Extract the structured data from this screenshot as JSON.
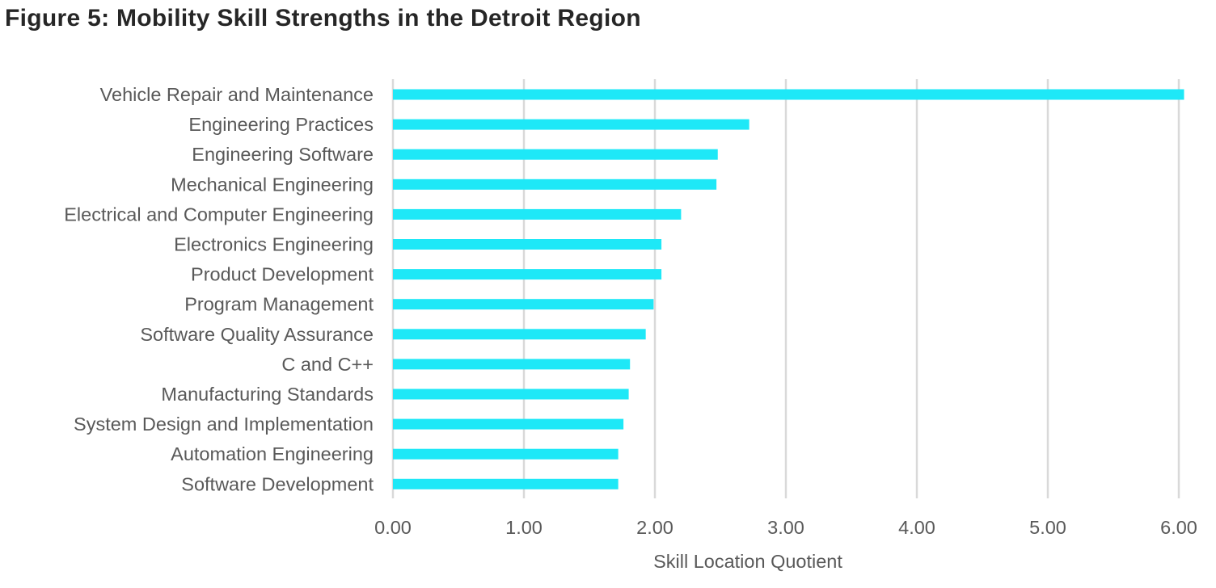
{
  "chart_data": {
    "type": "bar",
    "orientation": "horizontal",
    "title": "Figure 5: Mobility Skill Strengths in the Detroit Region",
    "xlabel": "Skill Location Quotient",
    "ylabel": "",
    "xlim": [
      0,
      6
    ],
    "x_ticks": [
      "0.00",
      "1.00",
      "2.00",
      "3.00",
      "4.00",
      "5.00",
      "6.00"
    ],
    "grid": "vertical",
    "bar_color": "#1ee8f7",
    "categories": [
      "Vehicle Repair and Maintenance",
      "Engineering Practices",
      "Engineering Software",
      "Mechanical Engineering",
      "Electrical and Computer Engineering",
      "Electronics Engineering",
      "Product Development",
      "Program Management",
      "Software Quality Assurance",
      "C and C++",
      "Manufacturing Standards",
      "System Design and Implementation",
      "Automation Engineering",
      "Software Development"
    ],
    "values": [
      6.04,
      2.72,
      2.48,
      2.47,
      2.2,
      2.05,
      2.05,
      1.99,
      1.93,
      1.81,
      1.8,
      1.76,
      1.72,
      1.72
    ]
  }
}
